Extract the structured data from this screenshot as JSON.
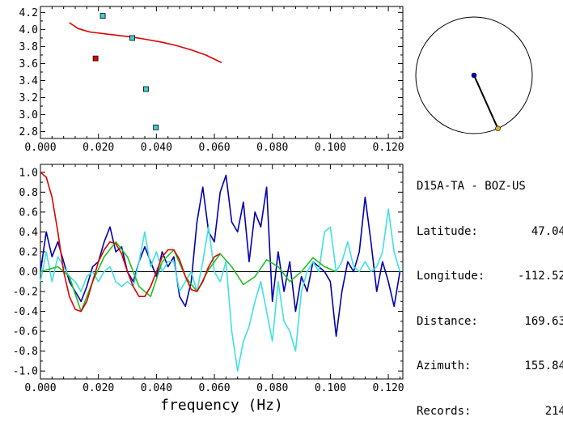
{
  "station": {
    "title": "D15A-TA - BOZ-US",
    "rows": [
      {
        "label": "Latitude:",
        "value": "47.04"
      },
      {
        "label": "Longitude:",
        "value": "-112.52"
      },
      {
        "label": "Distance:",
        "value": "169.63"
      },
      {
        "label": "Azimuth:",
        "value": "155.84"
      },
      {
        "label": "Records:",
        "value": "214"
      }
    ]
  },
  "chart_data": [
    {
      "type": "scatter",
      "panel": "top",
      "xlabel": "",
      "ylabel": "",
      "xlim": [
        0.0,
        0.125
      ],
      "ylim": [
        2.72,
        4.27
      ],
      "xticks": [
        "0.000",
        "0.020",
        "0.040",
        "0.060",
        "0.080",
        "0.100",
        "0.120"
      ],
      "xtick_values": [
        0.0,
        0.02,
        0.04,
        0.06,
        0.08,
        0.1,
        0.12
      ],
      "yticks": [
        "2.8",
        "3.0",
        "3.2",
        "3.4",
        "3.6",
        "3.8",
        "4.0",
        "4.2"
      ],
      "ytick_values": [
        2.8,
        3.0,
        3.2,
        3.4,
        3.6,
        3.8,
        4.0,
        4.2
      ],
      "series": [
        {
          "color": "#e00000",
          "kind": "line",
          "x": [
            0.01,
            0.013,
            0.017,
            0.022,
            0.027,
            0.032,
            0.037,
            0.042,
            0.047,
            0.052,
            0.057,
            0.0625
          ],
          "y": [
            4.08,
            4.01,
            3.97,
            3.95,
            3.93,
            3.91,
            3.88,
            3.85,
            3.81,
            3.76,
            3.7,
            3.61
          ]
        },
        {
          "color": "#40d0d0",
          "kind": "points",
          "x": [
            0.0215,
            0.0317,
            0.0364,
            0.0398
          ],
          "y": [
            4.16,
            3.9,
            3.3,
            2.85
          ]
        },
        {
          "color": "#e00000",
          "kind": "points",
          "x": [
            0.019
          ],
          "y": [
            3.66
          ]
        }
      ]
    },
    {
      "type": "line",
      "panel": "bottom",
      "xlabel": "frequency (Hz)",
      "ylabel": "",
      "xlim": [
        0.0,
        0.125
      ],
      "ylim": [
        -1.08,
        1.08
      ],
      "xticks": [
        "0.000",
        "0.020",
        "0.040",
        "0.060",
        "0.080",
        "0.100",
        "0.120"
      ],
      "xtick_values": [
        0.0,
        0.02,
        0.04,
        0.06,
        0.08,
        0.1,
        0.12
      ],
      "yticks": [
        "-1.0",
        "-0.8",
        "-0.6",
        "-0.4",
        "-0.2",
        "0.0",
        "0.2",
        "0.4",
        "0.6",
        "0.8",
        "1.0"
      ],
      "ytick_values": [
        -1.0,
        -0.8,
        -0.6,
        -0.4,
        -0.2,
        0.0,
        0.2,
        0.4,
        0.6,
        0.8,
        1.0
      ],
      "zero_line": true,
      "series": [
        {
          "color": "#0000b0",
          "x": [
            0,
            0.002,
            0.004,
            0.006,
            0.008,
            0.01,
            0.012,
            0.014,
            0.016,
            0.018,
            0.02,
            0.022,
            0.024,
            0.026,
            0.028,
            0.03,
            0.032,
            0.034,
            0.036,
            0.038,
            0.04,
            0.042,
            0.044,
            0.046,
            0.048,
            0.05,
            0.052,
            0.054,
            0.056,
            0.058,
            0.06,
            0.062,
            0.064,
            0.066,
            0.068,
            0.07,
            0.072,
            0.074,
            0.076,
            0.078,
            0.08,
            0.082,
            0.084,
            0.086,
            0.088,
            0.09,
            0.092,
            0.094,
            0.096,
            0.098,
            0.1,
            0.102,
            0.104,
            0.106,
            0.108,
            0.11,
            0.112,
            0.114,
            0.116,
            0.118,
            0.12,
            0.122,
            0.124
          ],
          "y": [
            0.0,
            0.4,
            0.15,
            0.3,
            0.1,
            -0.1,
            -0.2,
            -0.3,
            -0.15,
            0.05,
            0.1,
            0.3,
            0.45,
            0.2,
            0.25,
            0.0,
            -0.1,
            0.1,
            0.25,
            0.1,
            -0.05,
            0.2,
            0.05,
            0.15,
            -0.25,
            -0.35,
            -0.1,
            0.5,
            0.85,
            0.4,
            0.3,
            0.8,
            0.97,
            0.5,
            0.4,
            0.7,
            0.1,
            0.6,
            0.45,
            0.85,
            -0.3,
            0.2,
            -0.2,
            0.1,
            -0.4,
            -0.05,
            -0.2,
            0.1,
            0.05,
            0.0,
            -0.1,
            -0.65,
            -0.2,
            0.1,
            0.0,
            0.2,
            0.75,
            0.3,
            -0.2,
            0.1,
            -0.1,
            -0.35,
            0.0
          ]
        },
        {
          "color": "#40e0e0",
          "x": [
            0,
            0.002,
            0.004,
            0.006,
            0.008,
            0.01,
            0.012,
            0.014,
            0.016,
            0.018,
            0.02,
            0.022,
            0.024,
            0.026,
            0.028,
            0.03,
            0.032,
            0.034,
            0.036,
            0.038,
            0.04,
            0.042,
            0.044,
            0.046,
            0.048,
            0.05,
            0.052,
            0.054,
            0.056,
            0.058,
            0.06,
            0.062,
            0.064,
            0.066,
            0.068,
            0.07,
            0.072,
            0.074,
            0.076,
            0.078,
            0.08,
            0.082,
            0.084,
            0.086,
            0.088,
            0.09,
            0.092,
            0.094,
            0.096,
            0.098,
            0.1,
            0.102,
            0.104,
            0.106,
            0.108,
            0.11,
            0.112,
            0.114,
            0.116,
            0.118,
            0.12,
            0.122,
            0.124
          ],
          "y": [
            -0.1,
            0.2,
            -0.1,
            0.15,
            0.05,
            -0.05,
            -0.1,
            -0.2,
            -0.05,
            0.0,
            -0.1,
            0.0,
            0.05,
            -0.1,
            -0.15,
            -0.1,
            -0.15,
            0.1,
            0.4,
            0.05,
            0.2,
            0.0,
            0.1,
            0.1,
            -0.2,
            -0.1,
            0.0,
            -0.2,
            0.1,
            0.45,
            0.0,
            -0.1,
            0.1,
            -0.6,
            -1.0,
            -0.7,
            -0.55,
            -0.3,
            -0.1,
            -0.4,
            -0.7,
            -0.1,
            -0.5,
            -0.6,
            -0.8,
            -0.2,
            0.0,
            0.1,
            0.0,
            0.4,
            0.45,
            0.0,
            0.1,
            0.3,
            0.05,
            0.0,
            0.1,
            0.0,
            0.05,
            0.2,
            0.63,
            0.2,
            0.0
          ]
        },
        {
          "color": "#20c020",
          "x": [
            0.0,
            0.006,
            0.01,
            0.014,
            0.018,
            0.022,
            0.026,
            0.03,
            0.034,
            0.038,
            0.042,
            0.046,
            0.05,
            0.054,
            0.058,
            0.062,
            0.066,
            0.07,
            0.074,
            0.078,
            0.082,
            0.086,
            0.09,
            0.094,
            0.098,
            0.102
          ],
          "y": [
            0.0,
            0.05,
            -0.05,
            -0.4,
            -0.1,
            0.15,
            0.3,
            0.15,
            -0.15,
            -0.25,
            0.1,
            0.22,
            -0.05,
            -0.2,
            0.02,
            0.18,
            0.05,
            -0.13,
            -0.05,
            0.12,
            0.05,
            -0.1,
            0.0,
            0.14,
            0.05,
            0.0
          ]
        },
        {
          "color": "#e00000",
          "x": [
            0.0,
            0.002,
            0.004,
            0.006,
            0.008,
            0.01,
            0.012,
            0.014,
            0.016,
            0.018,
            0.02,
            0.022,
            0.024,
            0.026,
            0.028,
            0.03,
            0.032,
            0.034,
            0.036,
            0.038,
            0.04,
            0.042,
            0.044,
            0.046,
            0.048,
            0.05,
            0.052,
            0.054,
            0.056,
            0.058,
            0.06,
            0.062
          ],
          "y": [
            1.0,
            0.95,
            0.75,
            0.4,
            0.0,
            -0.25,
            -0.38,
            -0.4,
            -0.3,
            -0.1,
            0.1,
            0.22,
            0.3,
            0.28,
            0.18,
            0.0,
            -0.15,
            -0.25,
            -0.25,
            -0.15,
            0.0,
            0.15,
            0.22,
            0.22,
            0.12,
            -0.05,
            -0.18,
            -0.2,
            -0.1,
            0.05,
            0.15,
            0.18
          ]
        }
      ]
    }
  ],
  "map": {
    "center_color": "#0000b0",
    "station_color": "#e0b020",
    "azimuth": 155.84
  }
}
